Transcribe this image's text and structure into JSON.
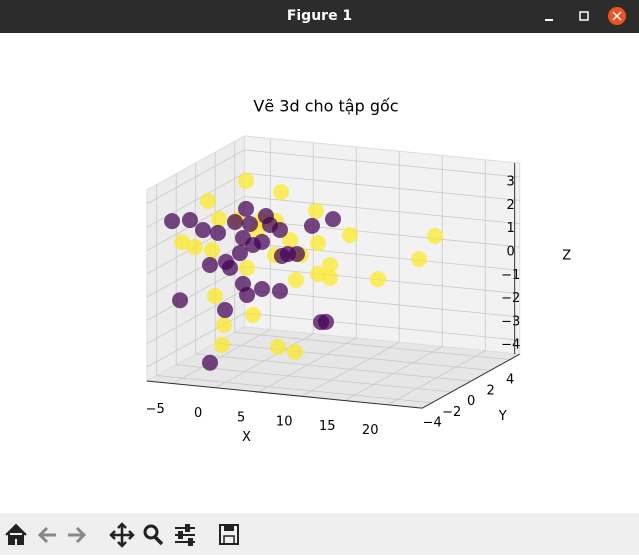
{
  "window": {
    "title": "Figure 1"
  },
  "chart_data": {
    "type": "scatter3d",
    "title": "Vẽ 3d cho tập gốc",
    "xlabel": "X",
    "ylabel": "Y",
    "zlabel": "Z",
    "xlim": [
      -8,
      24
    ],
    "ylim": [
      -5,
      5
    ],
    "zlim": [
      -4.6,
      3.6
    ],
    "xticks": [
      {
        "value": -5,
        "label": "−5"
      },
      0,
      5,
      10,
      15,
      20
    ],
    "yticks": [
      {
        "value": -4,
        "label": "−4"
      },
      {
        "value": -2,
        "label": "−2"
      },
      0,
      2,
      4
    ],
    "zticks": [
      {
        "value": -4,
        "label": "−4"
      },
      {
        "value": -3,
        "label": "−3"
      },
      {
        "value": -2,
        "label": "−2"
      },
      {
        "value": -1,
        "label": "−1"
      },
      0,
      1,
      2,
      3
    ],
    "grid": true,
    "series": [
      {
        "color": "#fde725",
        "x": [
          -2.15,
          1.92,
          -6.57,
          -5.29,
          5.99,
          -0.29,
          1.34,
          -7.3,
          9.94,
          19.83,
          6.22,
          -6.1,
          1.22,
          4.24,
          17.97,
          7.62,
          6.22,
          -2.03,
          13.2,
          3.66,
          -5.76,
          -1.34,
          -4.71,
          -4.94,
          1.57,
          3.55,
          2.97,
          -6.95,
          -3.2,
          7.62,
          -0.87
        ],
        "y": [
          0,
          0,
          0,
          0,
          0,
          0,
          0,
          -2,
          0,
          0,
          0,
          0,
          0,
          0,
          0,
          0,
          0,
          0,
          0,
          0,
          0,
          0,
          0,
          0,
          0,
          0,
          0,
          -1,
          0,
          0,
          0
        ],
        "z": [
          3.04,
          2.71,
          2.02,
          1.29,
          2.05,
          1.43,
          1.45,
          0.69,
          1.16,
          1.48,
          0.68,
          -0.07,
          -0.02,
          0.09,
          0.42,
          -0.21,
          -0.65,
          -0.69,
          -0.61,
          -1.0,
          -2.03,
          -2.68,
          -3.24,
          -4.1,
          -3.95,
          -4.09,
          0.69,
          0.26,
          1.33,
          -0.77,
          0.98
        ]
      },
      {
        "color": "#440154",
        "x": [
          -2.15,
          -7.35,
          -6.4,
          -7.15,
          -5.41,
          -3.43,
          -1.69,
          -0.29,
          2.73,
          3.78,
          5.52,
          7.97,
          -2.5,
          -6.34,
          -4.48,
          -2.5,
          -2.03,
          -0.29,
          1.8,
          -4.59,
          -6.42,
          6.57,
          -4.07,
          -2.85,
          -1.34,
          2.03,
          1.8,
          0.17,
          -4.01,
          7.15,
          0.64
        ],
        "y": [
          0,
          -3,
          -2,
          0,
          0,
          0,
          0,
          0,
          0,
          0,
          0,
          0,
          0,
          0,
          0,
          0,
          0,
          0,
          0,
          0,
          -3,
          0,
          -2,
          0,
          0,
          0,
          0,
          0,
          0,
          0,
          0
        ],
        "z": [
          1.84,
          1.82,
          1.67,
          0.75,
          0.69,
          1.23,
          1.21,
          0.49,
          0.08,
          0.12,
          1.39,
          1.77,
          0.58,
          -0.72,
          -0.52,
          -1.39,
          -1.85,
          -1.53,
          -1.54,
          -2.59,
          -1.54,
          -2.7,
          -4.37,
          -0.08,
          0.32,
          -0.03,
          1.08,
          1.62,
          -0.76,
          -2.67,
          1.25
        ]
      }
    ]
  }
}
